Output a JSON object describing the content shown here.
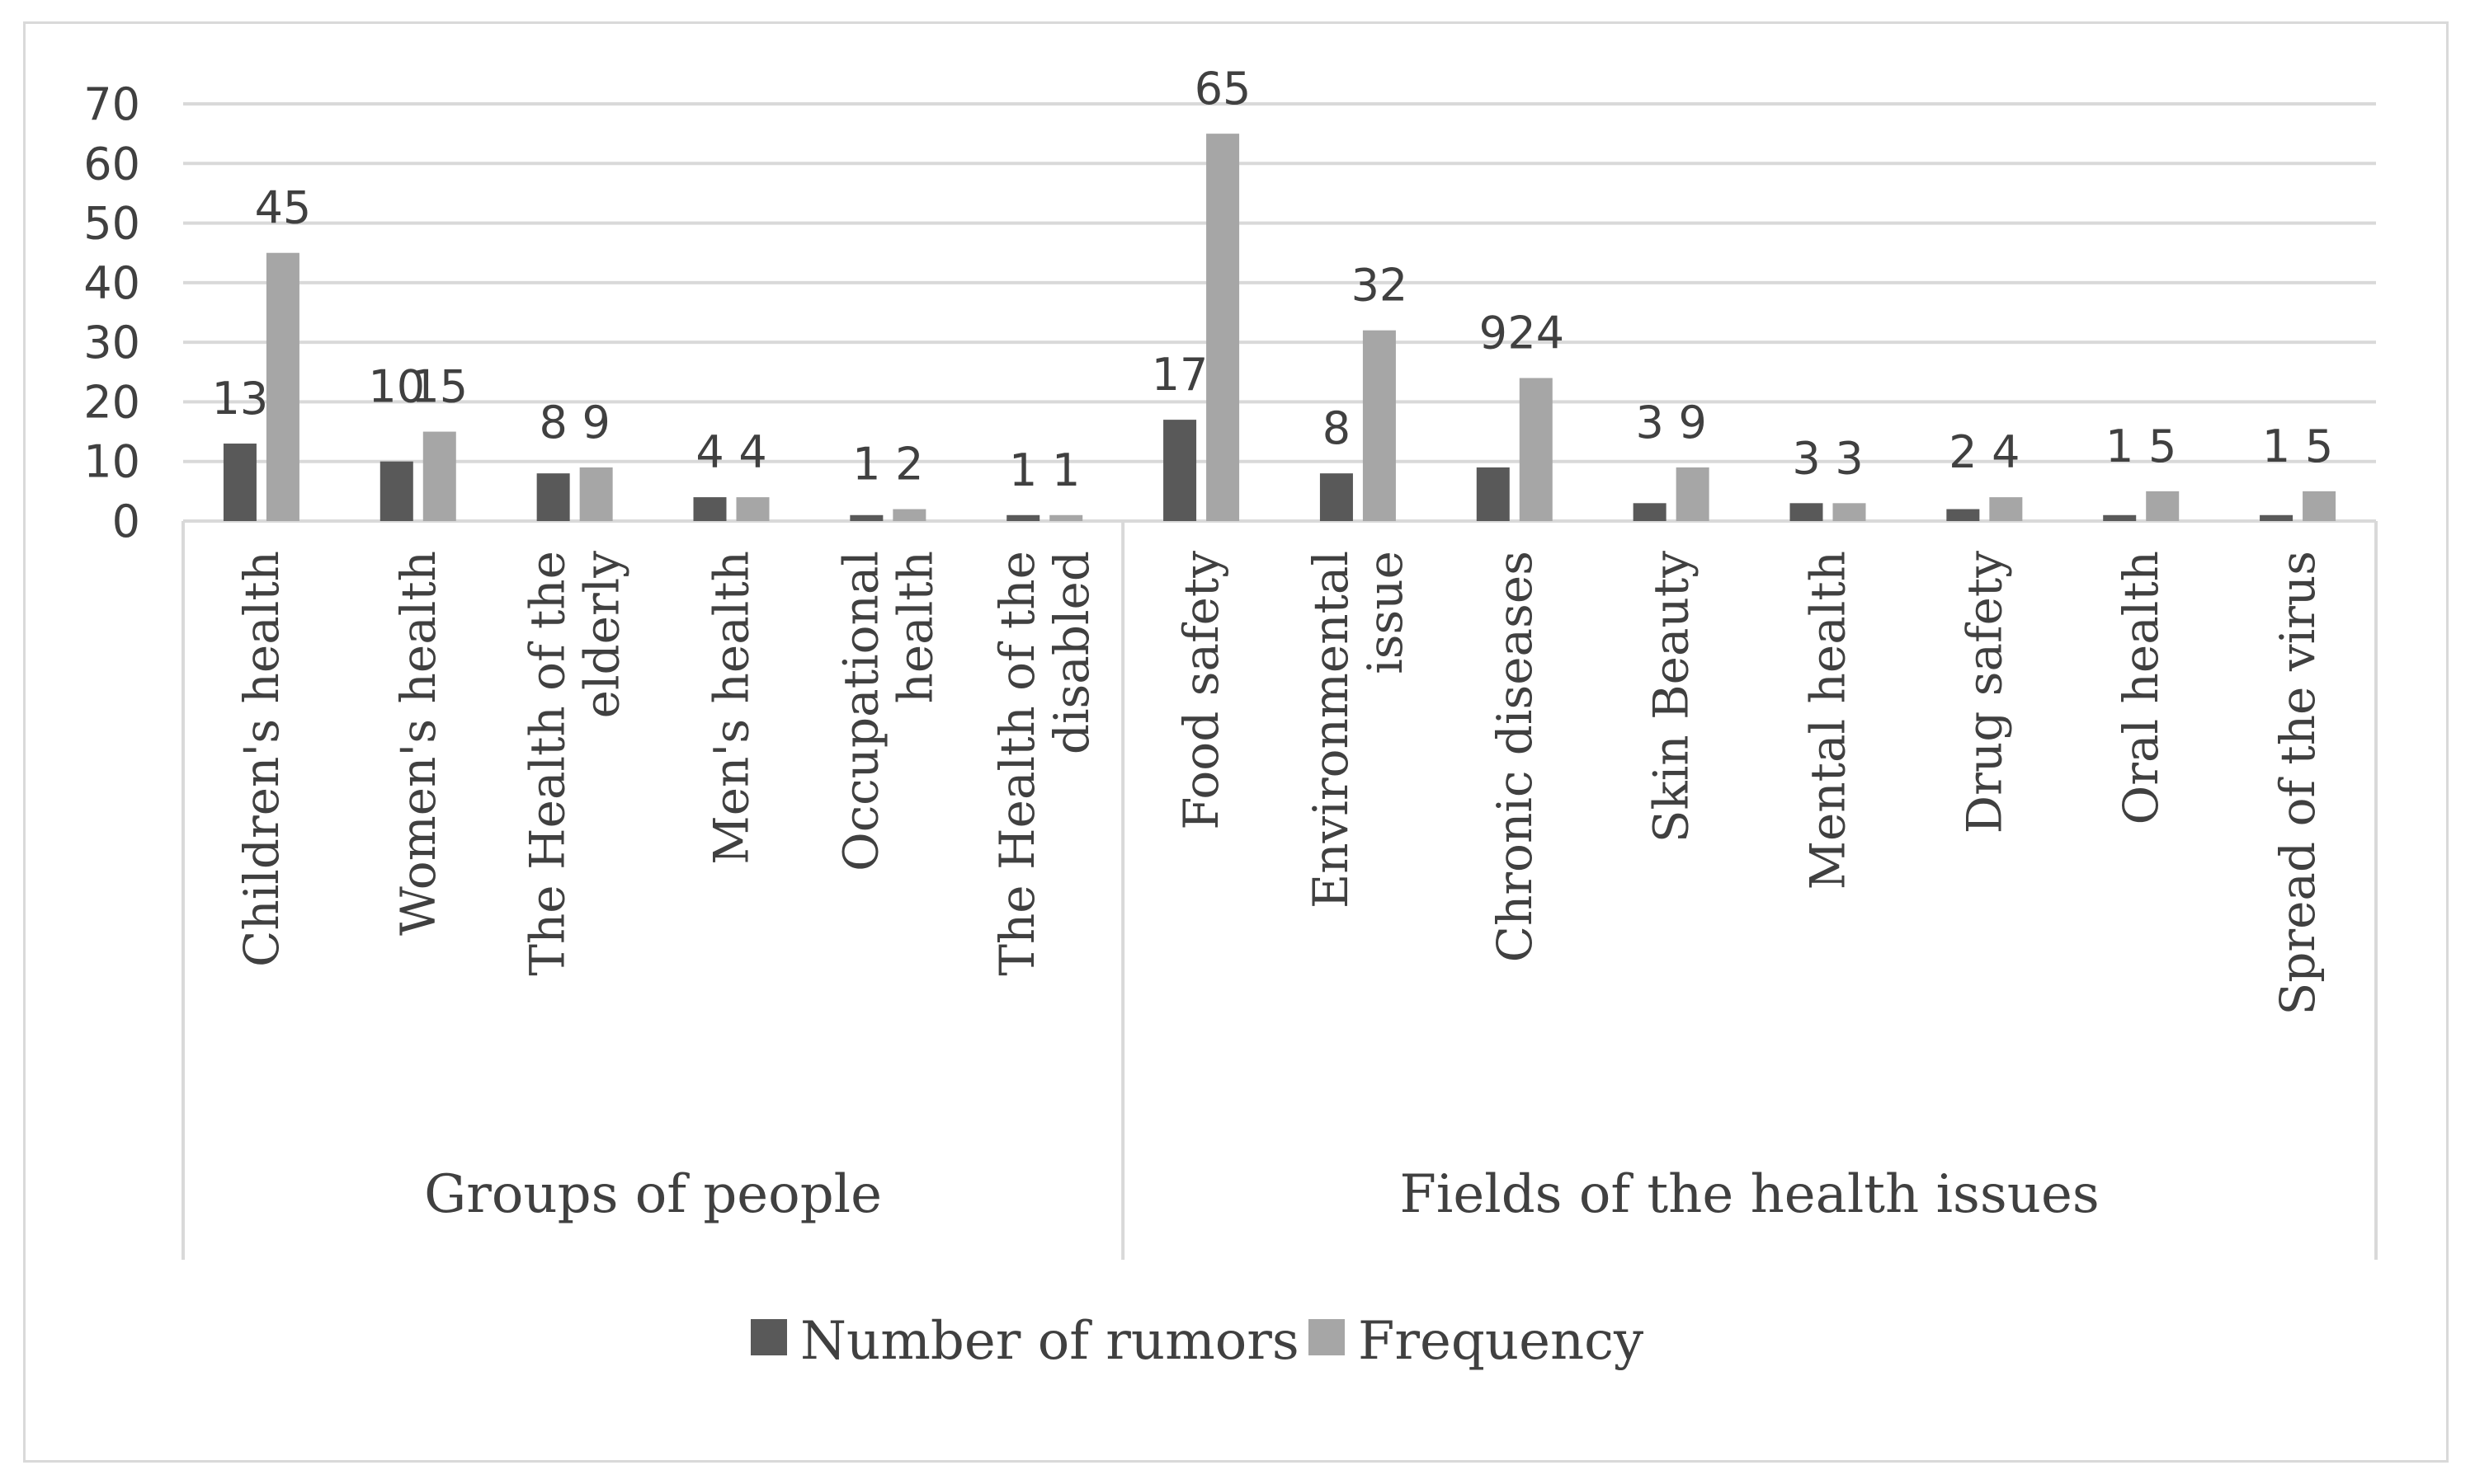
{
  "chart_data": {
    "type": "bar",
    "title": "",
    "xlabel": "",
    "ylabel": "",
    "ylim": [
      0,
      70
    ],
    "yticks": [
      0,
      10,
      20,
      30,
      40,
      50,
      60,
      70
    ],
    "grid": true,
    "legend_position": "bottom",
    "groups": [
      {
        "label": "Groups of people",
        "count": 6
      },
      {
        "label": "Fields of the health issues",
        "count": 8
      }
    ],
    "categories": [
      [
        "Children's health"
      ],
      [
        "Women's health"
      ],
      [
        "The Health of the",
        "elderly"
      ],
      [
        "Men's health"
      ],
      [
        "Occupational",
        "health"
      ],
      [
        "The Health of the",
        "disabled"
      ],
      [
        "Food safety"
      ],
      [
        "Environmental",
        "issue"
      ],
      [
        "Chronic diseases"
      ],
      [
        "Skin Beauty"
      ],
      [
        "Mental health"
      ],
      [
        "Drug safety"
      ],
      [
        "Oral health"
      ],
      [
        "Spread of the virus"
      ]
    ],
    "series": [
      {
        "name": "Number of rumors",
        "color": "#595959",
        "values": [
          13,
          10,
          8,
          4,
          1,
          1,
          17,
          8,
          9,
          3,
          3,
          2,
          1,
          1
        ]
      },
      {
        "name": "Frequency",
        "color": "#a6a6a6",
        "values": [
          45,
          15,
          9,
          4,
          2,
          1,
          65,
          32,
          24,
          9,
          3,
          4,
          5,
          5
        ]
      }
    ]
  }
}
